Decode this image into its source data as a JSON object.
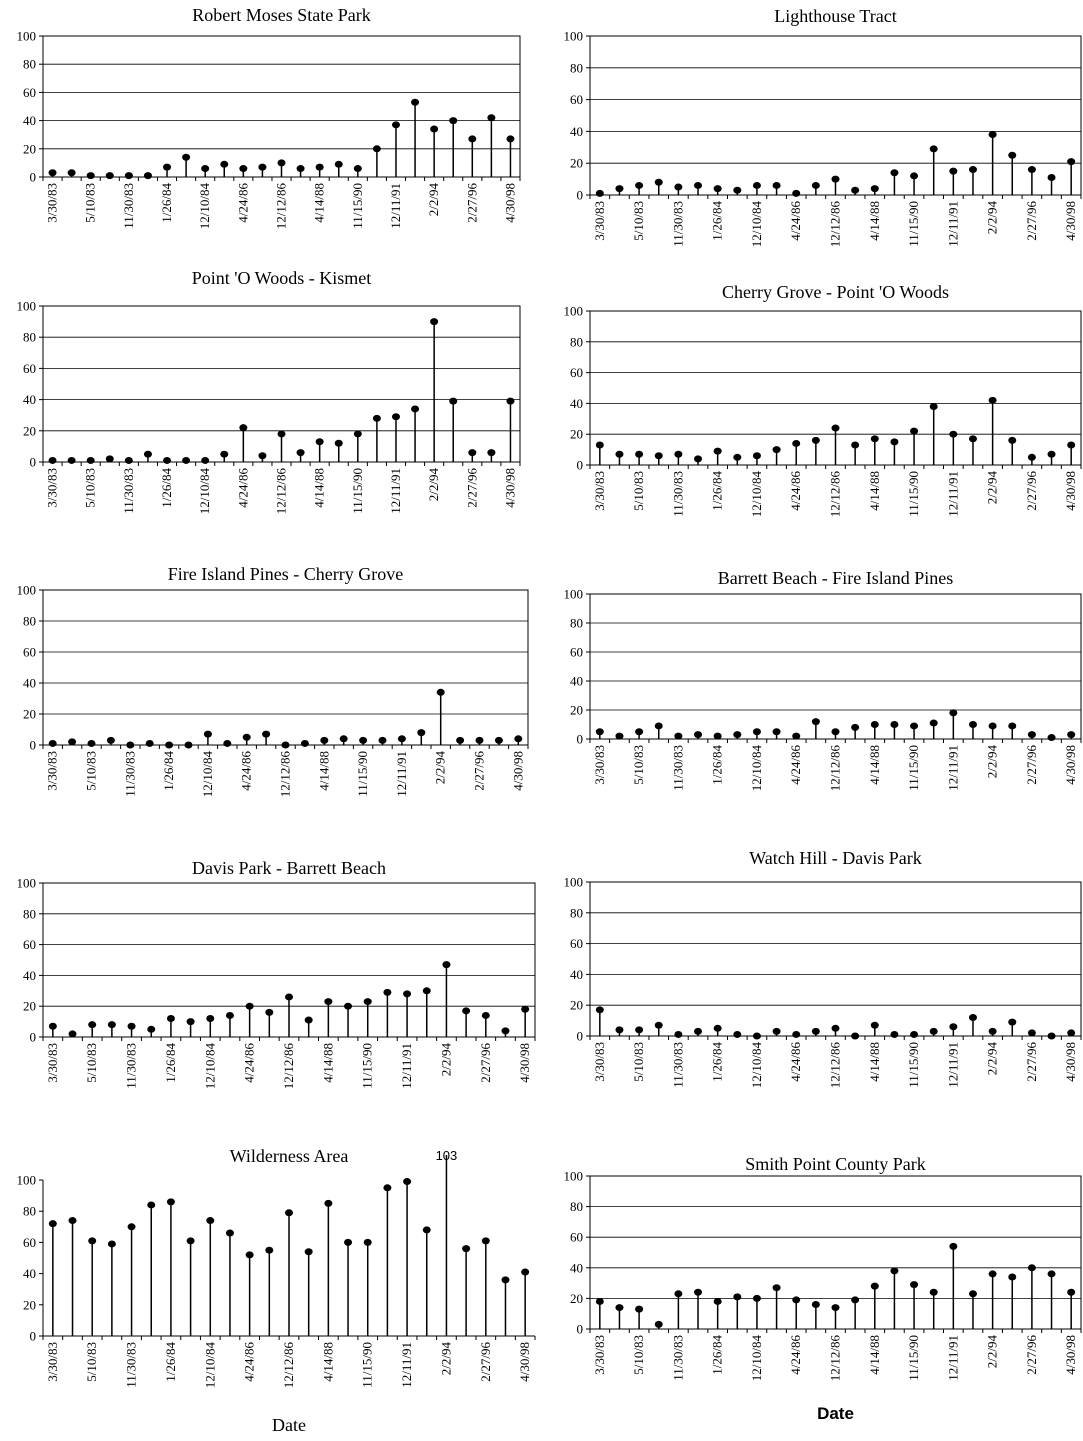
{
  "chart_data": [
    {
      "type": "stem",
      "title": "Robert Moses State Park",
      "xlabel": "",
      "ylabel": "",
      "ylim": [
        0,
        100
      ],
      "yticks": [
        0,
        20,
        40,
        60,
        80,
        100
      ],
      "grid": true,
      "x_tick_labels": [
        "3/30/83",
        "5/10/83",
        "11/30/83",
        "1/26/84",
        "12/10/84",
        "4/24/86",
        "12/12/86",
        "4/14/88",
        "11/15/90",
        "12/11/91",
        "2/2/94",
        "2/27/96",
        "4/30/98"
      ],
      "values": [
        3,
        3,
        1,
        1,
        1,
        1,
        7,
        14,
        6,
        9,
        6,
        7,
        10,
        6,
        7,
        9,
        6,
        20,
        37,
        53,
        34,
        40,
        27,
        42,
        27
      ]
    },
    {
      "type": "stem",
      "title": "Lighthouse Tract",
      "xlabel": "",
      "ylabel": "",
      "ylim": [
        0,
        100
      ],
      "yticks": [
        0,
        20,
        40,
        60,
        80,
        100
      ],
      "grid": true,
      "x_tick_labels": [
        "3/30/83",
        "5/10/83",
        "11/30/83",
        "1/26/84",
        "12/10/84",
        "4/24/86",
        "12/12/86",
        "4/14/88",
        "11/15/90",
        "12/11/91",
        "2/2/94",
        "2/27/96",
        "4/30/98"
      ],
      "values": [
        1,
        4,
        6,
        8,
        5,
        6,
        4,
        3,
        6,
        6,
        1,
        6,
        10,
        3,
        4,
        14,
        12,
        29,
        15,
        16,
        38,
        25,
        16,
        11,
        21
      ]
    },
    {
      "type": "stem",
      "title": "Point 'O Woods - Kismet",
      "xlabel": "",
      "ylabel": "",
      "ylim": [
        0,
        100
      ],
      "yticks": [
        0,
        20,
        40,
        60,
        80,
        100
      ],
      "grid": true,
      "x_tick_labels": [
        "3/30/83",
        "5/10/83",
        "11/30/83",
        "1/26/84",
        "12/10/84",
        "4/24/86",
        "12/12/86",
        "4/14/88",
        "11/15/90",
        "12/11/91",
        "2/2/94",
        "2/27/96",
        "4/30/98"
      ],
      "values": [
        1,
        1,
        1,
        2,
        1,
        5,
        1,
        1,
        1,
        5,
        22,
        4,
        18,
        6,
        13,
        12,
        18,
        28,
        29,
        34,
        90,
        39,
        6,
        6,
        39
      ]
    },
    {
      "type": "stem",
      "title": "Cherry Grove - Point 'O Woods",
      "xlabel": "",
      "ylabel": "",
      "ylim": [
        0,
        100
      ],
      "yticks": [
        0,
        20,
        40,
        60,
        80,
        100
      ],
      "grid": true,
      "x_tick_labels": [
        "3/30/83",
        "5/10/83",
        "11/30/83",
        "1/26/84",
        "12/10/84",
        "4/24/86",
        "12/12/86",
        "4/14/88",
        "11/15/90",
        "12/11/91",
        "2/2/94",
        "2/27/96",
        "4/30/98"
      ],
      "values": [
        13,
        7,
        7,
        6,
        7,
        4,
        9,
        5,
        6,
        10,
        14,
        16,
        24,
        13,
        17,
        15,
        22,
        38,
        20,
        17,
        42,
        16,
        5,
        7,
        13
      ]
    },
    {
      "type": "stem",
      "title": "Fire Island Pines -  Cherry Grove",
      "xlabel": "",
      "ylabel": "",
      "ylim": [
        0,
        100
      ],
      "yticks": [
        0,
        20,
        40,
        60,
        80,
        100
      ],
      "grid": true,
      "x_tick_labels": [
        "3/30/83",
        "5/10/83",
        "11/30/83",
        "1/26/84",
        "12/10/84",
        "4/24/86",
        "12/12/86",
        "4/14/88",
        "11/15/90",
        "12/11/91",
        "2/2/94",
        "2/27/96",
        "4/30/98"
      ],
      "values": [
        1,
        2,
        1,
        3,
        0,
        1,
        0,
        0,
        7,
        1,
        5,
        7,
        0,
        1,
        3,
        4,
        3,
        3,
        4,
        8,
        34,
        3,
        3,
        3,
        4
      ]
    },
    {
      "type": "stem",
      "title": "Barrett Beach - Fire Island Pines",
      "xlabel": "",
      "ylabel": "",
      "ylim": [
        0,
        100
      ],
      "yticks": [
        0,
        20,
        40,
        60,
        80,
        100
      ],
      "grid": true,
      "x_tick_labels": [
        "3/30/83",
        "5/10/83",
        "11/30/83",
        "1/26/84",
        "12/10/84",
        "4/24/86",
        "12/12/86",
        "4/14/88",
        "11/15/90",
        "12/11/91",
        "2/2/94",
        "2/27/96",
        "4/30/98"
      ],
      "values": [
        5,
        2,
        5,
        9,
        2,
        3,
        2,
        3,
        5,
        5,
        2,
        12,
        5,
        8,
        10,
        10,
        9,
        11,
        18,
        10,
        9,
        9,
        3,
        1,
        3
      ]
    },
    {
      "type": "stem",
      "title": "Davis Park - Barrett Beach",
      "xlabel": "",
      "ylabel": "",
      "ylim": [
        0,
        100
      ],
      "yticks": [
        0,
        20,
        40,
        60,
        80,
        100
      ],
      "grid": true,
      "x_tick_labels": [
        "3/30/83",
        "5/10/83",
        "11/30/83",
        "1/26/84",
        "12/10/84",
        "4/24/86",
        "12/12/86",
        "4/14/88",
        "11/15/90",
        "12/11/91",
        "2/2/94",
        "2/27/96",
        "4/30/98"
      ],
      "values": [
        7,
        2,
        8,
        8,
        7,
        5,
        12,
        10,
        12,
        14,
        20,
        16,
        26,
        11,
        23,
        20,
        23,
        29,
        28,
        30,
        47,
        17,
        14,
        4,
        18
      ]
    },
    {
      "type": "stem",
      "title": "Watch Hill - Davis Park",
      "xlabel": "",
      "ylabel": "",
      "ylim": [
        0,
        100
      ],
      "yticks": [
        0,
        20,
        40,
        60,
        80,
        100
      ],
      "grid": true,
      "x_tick_labels": [
        "3/30/83",
        "5/10/83",
        "11/30/83",
        "1/26/84",
        "12/10/84",
        "4/24/86",
        "12/12/86",
        "4/14/88",
        "11/15/90",
        "12/11/91",
        "2/2/94",
        "2/27/96",
        "4/30/98"
      ],
      "values": [
        17,
        4,
        4,
        7,
        1,
        3,
        5,
        1,
        0,
        3,
        1,
        3,
        5,
        0,
        7,
        1,
        1,
        3,
        6,
        12,
        3,
        9,
        2,
        0,
        2
      ]
    },
    {
      "type": "stem",
      "title": "Wilderness Area",
      "xlabel": "Date",
      "ylabel": "",
      "ylim": [
        0,
        100
      ],
      "yticks": [
        0,
        20,
        40,
        60,
        80,
        100
      ],
      "grid": false,
      "x_tick_labels": [
        "3/30/83",
        "5/10/83",
        "11/30/83",
        "1/26/84",
        "12/10/84",
        "4/24/86",
        "12/12/86",
        "4/14/88",
        "11/15/90",
        "12/11/91",
        "2/2/94",
        "2/27/96",
        "4/30/98"
      ],
      "values": [
        72,
        74,
        61,
        59,
        70,
        84,
        86,
        61,
        74,
        66,
        52,
        55,
        79,
        54,
        85,
        60,
        60,
        95,
        99,
        68,
        103,
        56,
        61,
        36,
        41
      ],
      "annotations": [
        {
          "text": "103",
          "index": 20
        }
      ]
    },
    {
      "type": "stem",
      "title": "Smith Point County Park",
      "xlabel": "Date",
      "ylabel": "",
      "ylim": [
        0,
        100
      ],
      "yticks": [
        0,
        20,
        40,
        60,
        80,
        100
      ],
      "grid": true,
      "x_tick_labels": [
        "3/30/83",
        "5/10/83",
        "11/30/83",
        "1/26/84",
        "12/10/84",
        "4/24/86",
        "12/12/86",
        "4/14/88",
        "11/15/90",
        "12/11/91",
        "2/2/94",
        "2/27/96",
        "4/30/98"
      ],
      "values": [
        18,
        14,
        13,
        3,
        23,
        24,
        18,
        21,
        20,
        27,
        19,
        16,
        14,
        19,
        28,
        38,
        29,
        24,
        54,
        23,
        36,
        34,
        40,
        36,
        24
      ]
    }
  ]
}
